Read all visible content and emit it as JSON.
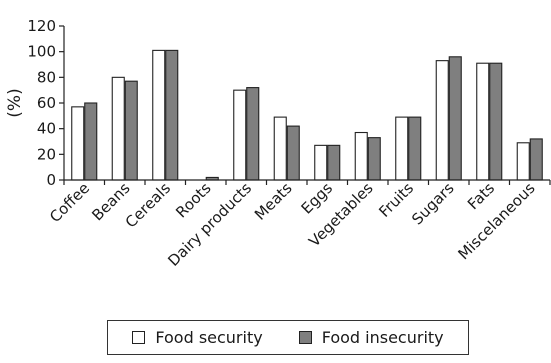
{
  "chart_data": {
    "type": "bar",
    "ylabel": "(%)",
    "ylim": [
      0,
      120
    ],
    "yticks": [
      0,
      20,
      40,
      60,
      80,
      100,
      120
    ],
    "categories": [
      "Coffee",
      "Beans",
      "Cereals",
      "Roots",
      "Dairy products",
      "Meats",
      "Eggs",
      "Vegetables",
      "Fruits",
      "Sugars",
      "Fats",
      "Miscelaneous"
    ],
    "series": [
      {
        "name": "Food security",
        "color": "#ffffff",
        "values": [
          57,
          80,
          101,
          0,
          70,
          49,
          27,
          37,
          49,
          93,
          91,
          29
        ]
      },
      {
        "name": "Food insecurity",
        "color": "#7f7f7f",
        "values": [
          60,
          77,
          101,
          2,
          72,
          42,
          27,
          33,
          49,
          96,
          91,
          32
        ]
      }
    ],
    "legend_position": "bottom",
    "grid": false
  }
}
